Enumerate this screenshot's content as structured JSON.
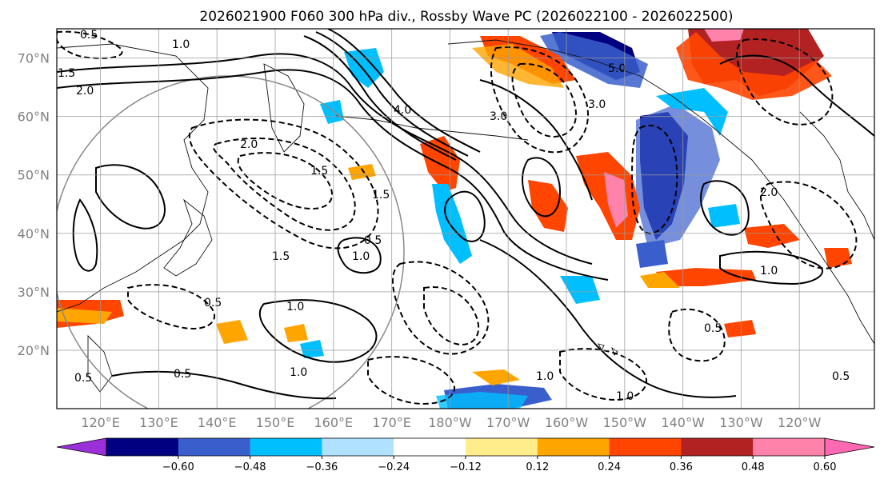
{
  "title": "2026021900 F060 300 hPa div., Rossby Wave PC (2026022100 - 2026022500)",
  "lat_ticks": [
    "20°N",
    "30°N",
    "40°N",
    "50°N",
    "60°N",
    "70°N"
  ],
  "lon_ticks": [
    "120°E",
    "130°E",
    "140°E",
    "150°E",
    "160°E",
    "170°E",
    "180°W",
    "170°W",
    "160°W",
    "150°W",
    "140°W",
    "130°W",
    "120°W"
  ],
  "colorbar": {
    "colors": [
      "#9b30d9",
      "#000080",
      "#3a5fcd",
      "#00bfff",
      "#b0e2ff",
      "#ffffff",
      "#ffec8b",
      "#ffa500",
      "#ff4500",
      "#b22222",
      "#ff82ab",
      "#ff69b4"
    ],
    "tick_labels": [
      "−0.60",
      "−0.48",
      "−0.36",
      "−0.24",
      "−0.12",
      "0.12",
      "0.24",
      "0.36",
      "0.48",
      "0.60"
    ]
  },
  "contour_labels": [
    "0.5",
    "1.0",
    "1.5",
    "2.0",
    "3.0",
    "4.0",
    "5.0",
    "0.5",
    "1.0",
    "1.5",
    "0.5",
    "1.0",
    "1.5",
    "2.0",
    "0.5",
    "1.0",
    "2.0",
    "3.0",
    "1.5",
    "1.0",
    "0.5",
    "1.0",
    "0.5",
    "1.0",
    "0.5"
  ]
}
